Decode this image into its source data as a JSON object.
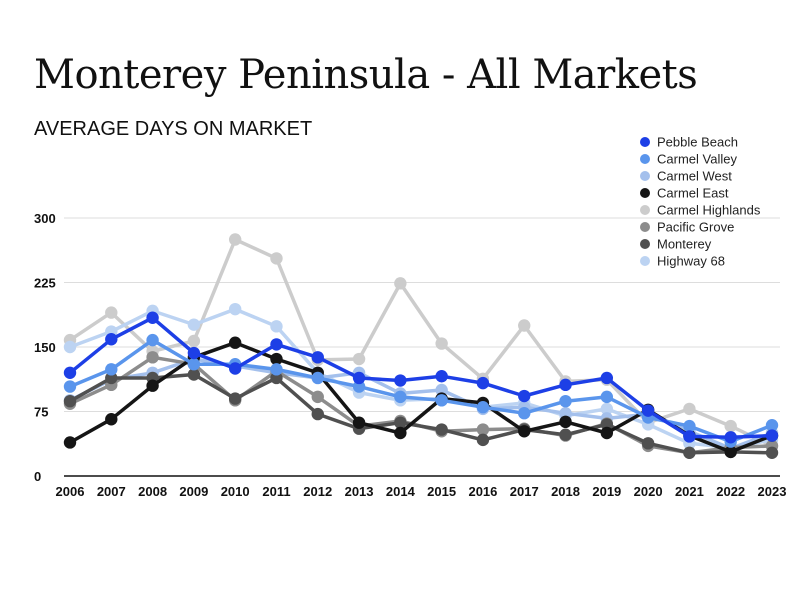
{
  "chart_data": {
    "type": "line",
    "title": "Monterey Peninsula - All Markets",
    "subtitle": "AVERAGE DAYS ON MARKET",
    "xlabel": "",
    "ylabel": "",
    "ylim": [
      0,
      300
    ],
    "yticks": [
      0,
      75,
      150,
      225,
      300
    ],
    "ytick_labels": [
      "0",
      "75",
      "150",
      "225",
      "300"
    ],
    "grid": true,
    "legend_position": "top-right",
    "categories": [
      "2006",
      "2007",
      "2008",
      "2009",
      "2010",
      "2011",
      "2012",
      "2013",
      "2014",
      "2015",
      "2016",
      "2017",
      "2018",
      "2019",
      "2020",
      "2021",
      "2022",
      "2023"
    ],
    "series": [
      {
        "name": "Carmel Highlands",
        "color": "#cccccc",
        "values": [
          158,
          190,
          145,
          157,
          275,
          253,
          135,
          136,
          224,
          154,
          113,
          175,
          110,
          112,
          62,
          78,
          58,
          35
        ]
      },
      {
        "name": "Highway 68",
        "color": "#bcd3f2",
        "values": [
          150,
          168,
          192,
          176,
          194,
          174,
          120,
          97,
          88,
          90,
          80,
          85,
          70,
          78,
          60,
          38,
          33,
          42
        ]
      },
      {
        "name": "Carmel West",
        "color": "#a4c0ec",
        "values": [
          88,
          112,
          120,
          136,
          128,
          120,
          114,
          120,
          96,
          100,
          78,
          80,
          73,
          67,
          72,
          52,
          32,
          50
        ]
      },
      {
        "name": "Pacific Grove",
        "color": "#8c8c8c",
        "values": [
          84,
          106,
          138,
          130,
          88,
          122,
          92,
          58,
          64,
          52,
          54,
          55,
          47,
          61,
          35,
          27,
          33,
          35
        ]
      },
      {
        "name": "Monterey",
        "color": "#505050",
        "values": [
          87,
          114,
          114,
          118,
          90,
          114,
          72,
          55,
          62,
          54,
          42,
          54,
          48,
          60,
          38,
          27,
          28,
          27
        ]
      },
      {
        "name": "Carmel East",
        "color": "#151515",
        "values": [
          39,
          66,
          105,
          138,
          155,
          136,
          120,
          62,
          50,
          90,
          85,
          52,
          63,
          50,
          77,
          47,
          28,
          47
        ]
      },
      {
        "name": "Carmel Valley",
        "color": "#5a95ec",
        "values": [
          104,
          124,
          158,
          130,
          130,
          124,
          114,
          104,
          92,
          88,
          80,
          73,
          87,
          92,
          68,
          58,
          40,
          59
        ]
      },
      {
        "name": "Pebble Beach",
        "color": "#1d3fe6",
        "values": [
          120,
          159,
          184,
          143,
          125,
          153,
          138,
          114,
          111,
          116,
          108,
          93,
          106,
          114,
          76,
          46,
          45,
          47
        ]
      }
    ],
    "legend_order": [
      "Pebble Beach",
      "Carmel Valley",
      "Carmel West",
      "Carmel East",
      "Carmel Highlands",
      "Pacific Grove",
      "Monterey",
      "Highway 68"
    ]
  }
}
